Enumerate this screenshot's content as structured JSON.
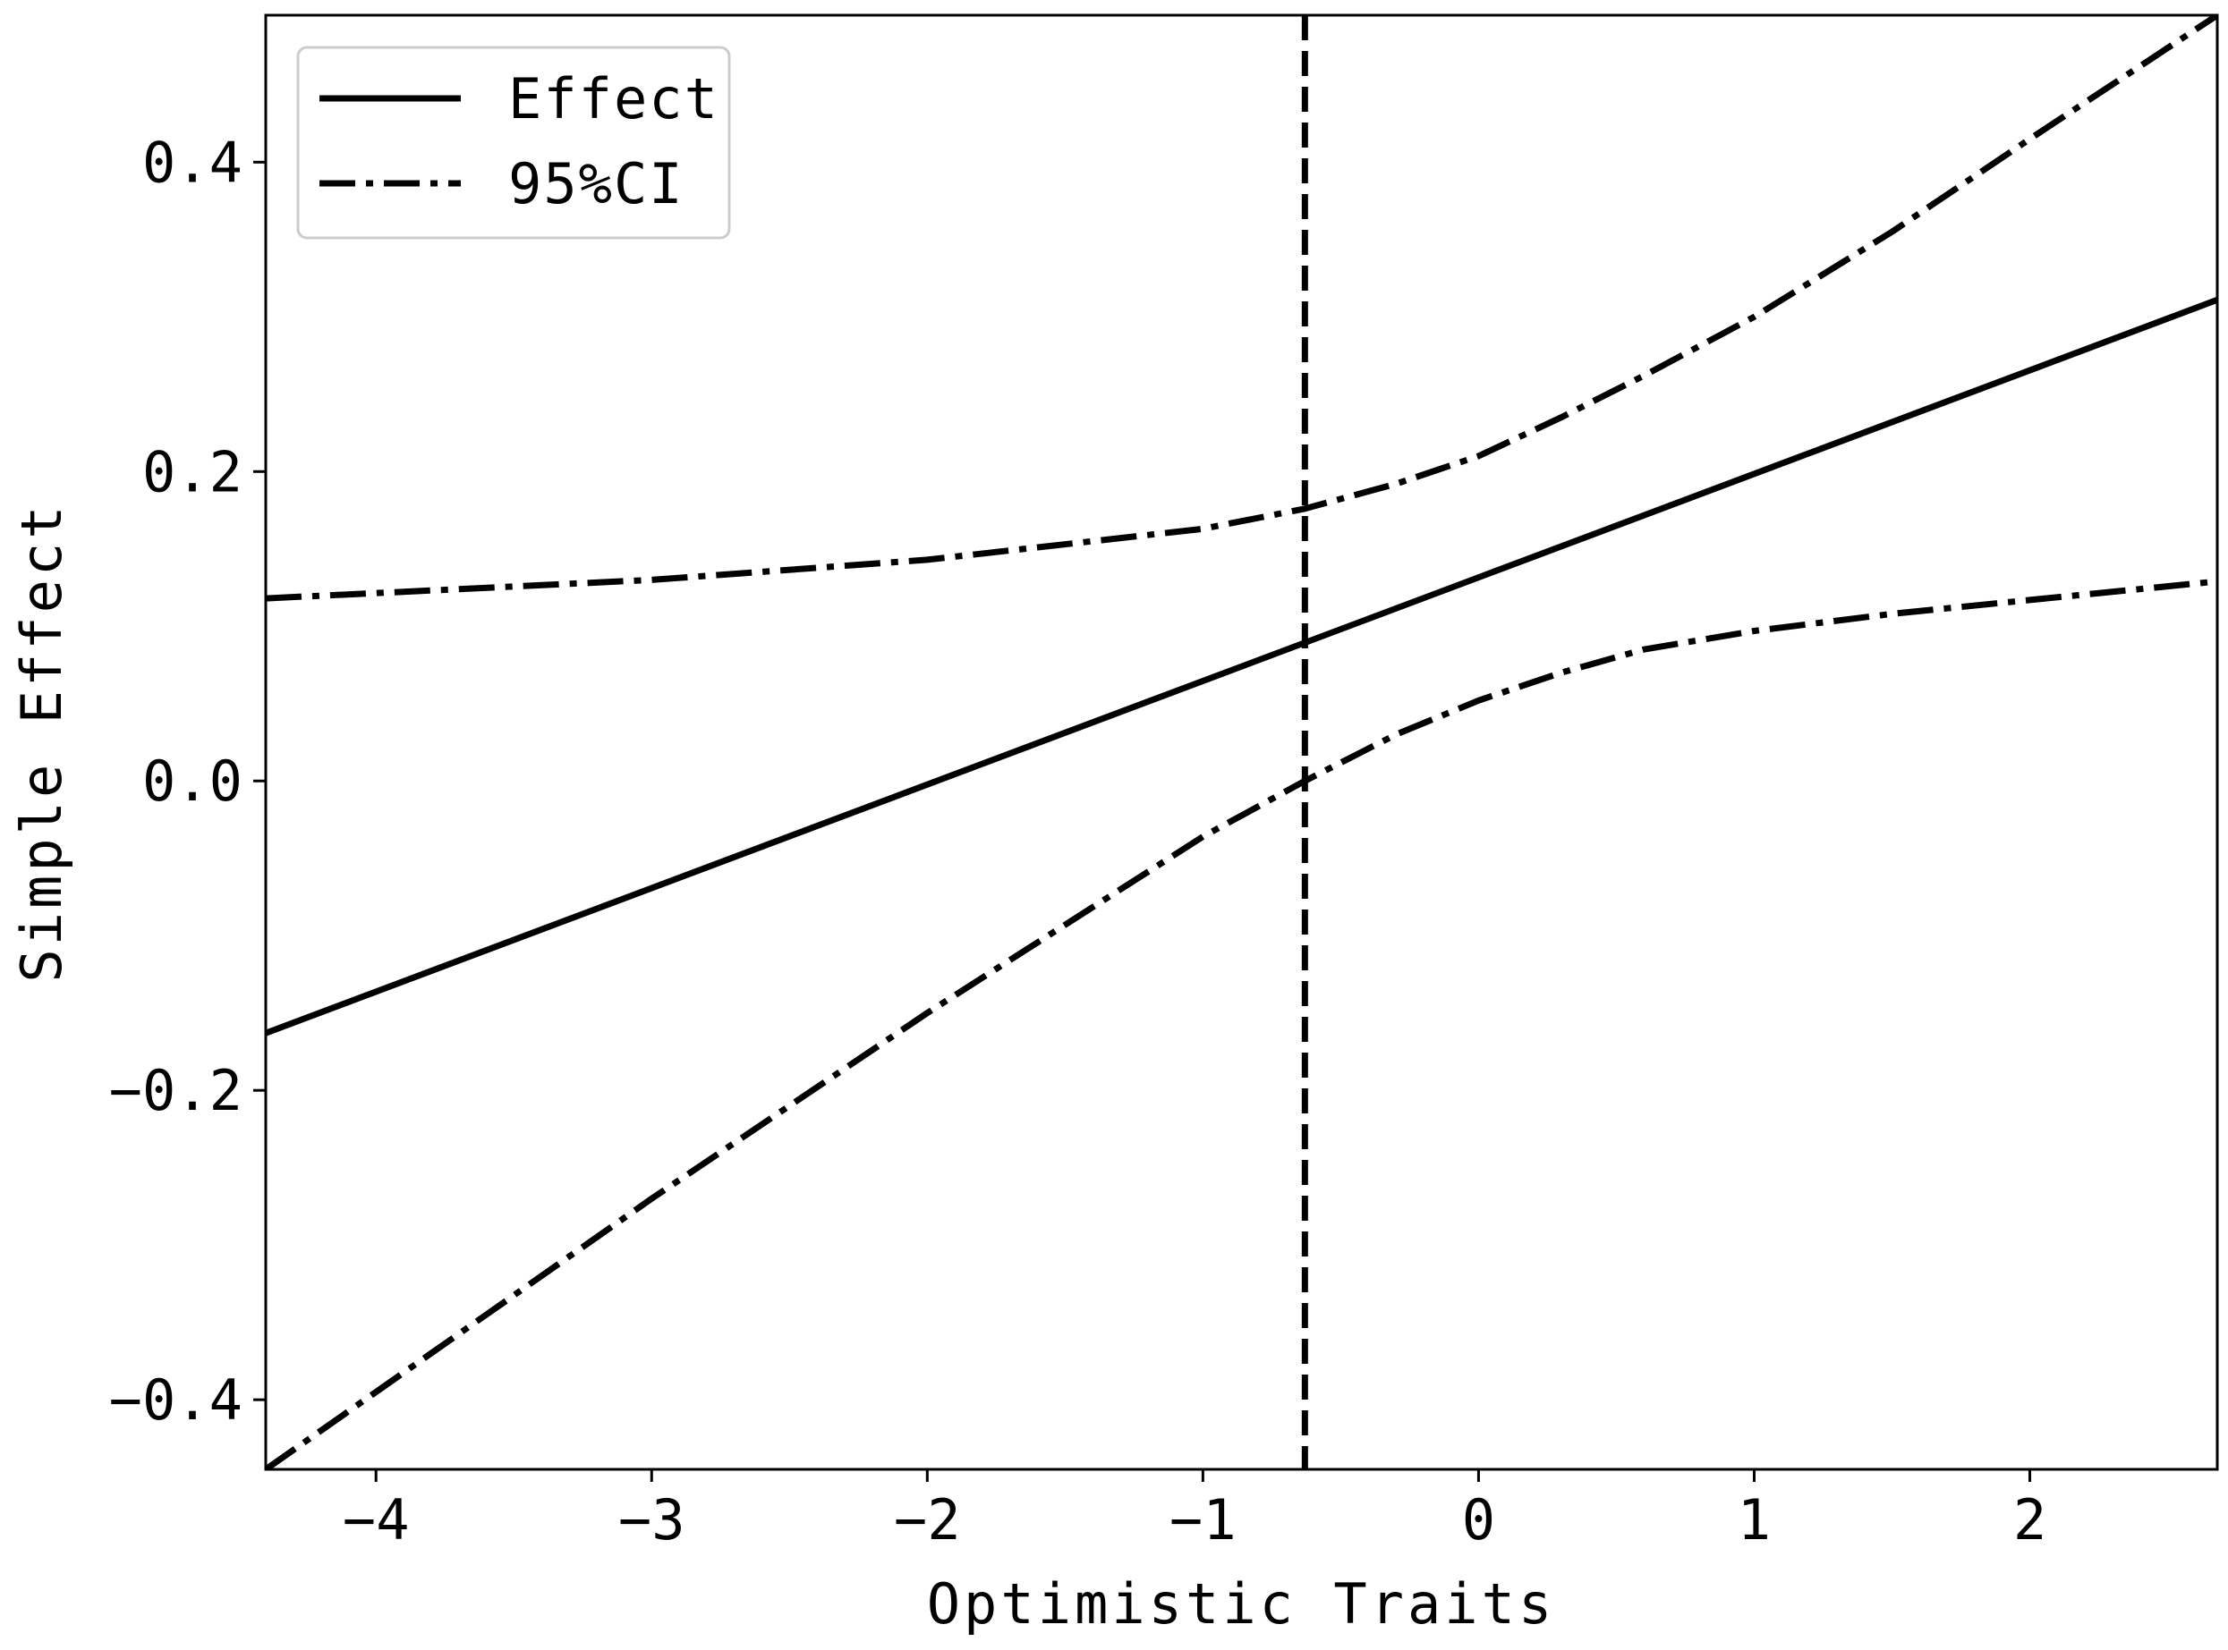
{
  "chart_data": {
    "type": "line",
    "xlabel": "Optimistic Traits",
    "ylabel": "Simple Effect",
    "xlim": [
      -4.4,
      2.68
    ],
    "ylim": [
      -0.445,
      0.495
    ],
    "xticks": [
      -4,
      -3,
      -2,
      -1,
      0,
      1,
      2
    ],
    "yticks": [
      -0.4,
      -0.2,
      0.0,
      0.2,
      0.4
    ],
    "xtick_labels": [
      "−4",
      "−3",
      "−2",
      "−1",
      "0",
      "1",
      "2"
    ],
    "ytick_labels": [
      "−0.4",
      "−0.2",
      "0.0",
      "0.2",
      "0.4"
    ],
    "grid": false,
    "legend_position": "top-left",
    "reference_line": {
      "orientation": "vertical",
      "x": -0.63,
      "style": "dashed"
    },
    "series": [
      {
        "name": "Effect",
        "style": "solid",
        "x": [
          -4.4,
          2.68
        ],
        "y": [
          -0.163,
          0.311
        ]
      },
      {
        "name": "95%CI",
        "style": "dashdot",
        "x": [
          -4.4,
          -3.0,
          -2.0,
          -1.0,
          -0.63,
          -0.3,
          0.0,
          0.3,
          0.6,
          1.0,
          1.5,
          2.0,
          2.68
        ],
        "y": [
          0.118,
          0.13,
          0.143,
          0.163,
          0.176,
          0.192,
          0.21,
          0.235,
          0.262,
          0.3,
          0.355,
          0.415,
          0.495
        ]
      },
      {
        "name": "95%CI lower",
        "style": "dashdot",
        "x": [
          -4.4,
          -3.0,
          -2.0,
          -1.0,
          -0.63,
          -0.3,
          0.0,
          0.3,
          0.6,
          1.0,
          1.5,
          2.0,
          2.68
        ],
        "y": [
          -0.445,
          -0.27,
          -0.15,
          -0.036,
          0.0,
          0.03,
          0.052,
          0.07,
          0.085,
          0.097,
          0.108,
          0.117,
          0.129
        ]
      }
    ],
    "legend": [
      {
        "label": "Effect",
        "style": "solid"
      },
      {
        "label": "95%CI",
        "style": "dashdot"
      }
    ]
  }
}
